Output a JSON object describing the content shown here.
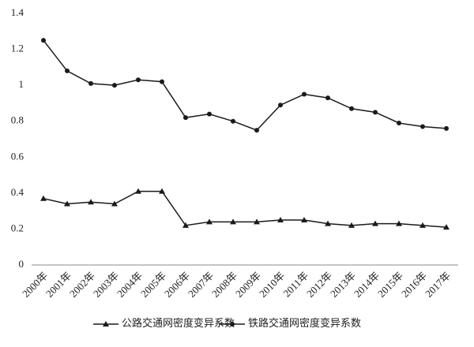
{
  "chart_data": {
    "type": "line",
    "categories": [
      "2000年",
      "2001年",
      "2002年",
      "2003年",
      "2004年",
      "2005年",
      "2006年",
      "2007年",
      "2008年",
      "2009年",
      "2010年",
      "2011年",
      "2012年",
      "2013年",
      "2014年",
      "2015年",
      "2016年",
      "2017年"
    ],
    "series": [
      {
        "name": "公路交通网密度变异系数",
        "color": "#1a1a1a",
        "marker": "triangle",
        "values": [
          0.37,
          0.34,
          0.35,
          0.34,
          0.41,
          0.41,
          0.22,
          0.24,
          0.24,
          0.24,
          0.25,
          0.25,
          0.23,
          0.22,
          0.23,
          0.23,
          0.22,
          0.21
        ]
      },
      {
        "name": "铁路交通网密度变异系数",
        "color": "#1a1a1a",
        "marker": "circle",
        "values": [
          1.25,
          1.08,
          1.01,
          1.0,
          1.03,
          1.02,
          0.82,
          0.84,
          0.8,
          0.75,
          0.89,
          0.95,
          0.93,
          0.87,
          0.85,
          0.79,
          0.77,
          0.76
        ]
      }
    ],
    "ylim": [
      0,
      1.4
    ],
    "yticks": [
      0,
      0.2,
      0.4,
      0.6,
      0.8,
      1,
      1.2,
      1.4
    ],
    "grid": false,
    "legend": "bottom"
  }
}
